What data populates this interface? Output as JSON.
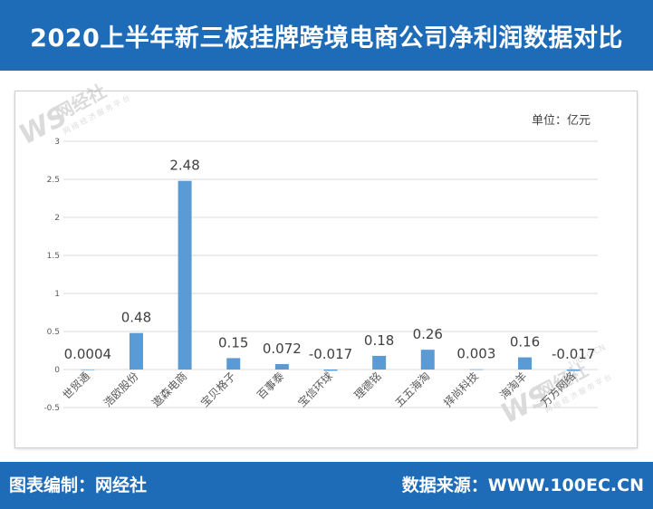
{
  "header": {
    "title": "2020上半年新三板挂牌跨境电商公司净利润数据对比"
  },
  "footer": {
    "left_text": "图表编制：网经社",
    "right_text": "数据来源：WWW.100EC.CN"
  },
  "watermark": {
    "logo": "WS",
    "name": "网经社",
    "tagline": "网 络 经 济 服 务 平 台",
    "site": "100EC.CN"
  },
  "colors": {
    "brand_blue": "#1e6bb8",
    "bar": "#5b9bd5",
    "grid": "#d9d9d9",
    "axis_text": "#595959"
  },
  "chart_data": {
    "type": "bar",
    "unit_label": "单位：亿元",
    "categories": [
      "世贸通",
      "浩欧股份",
      "遨森电商",
      "宝贝格子",
      "百事泰",
      "宝信环球",
      "理德铭",
      "五五海淘",
      "择尚科技",
      "海淘羊",
      "万方网络"
    ],
    "values": [
      0.0004,
      0.48,
      2.48,
      0.15,
      0.072,
      -0.017,
      0.18,
      0.26,
      0.003,
      0.16,
      -0.017
    ],
    "data_labels": [
      "0.0004",
      "0.48",
      "2.48",
      "0.15",
      "0.072",
      "-0.017",
      "0.18",
      "0.26",
      "0.003",
      "0.16",
      "-0.017"
    ],
    "ylim": [
      -0.5,
      3
    ],
    "yticks": [
      "-0.5",
      "0",
      "0.5",
      "1",
      "1.5",
      "2",
      "2.5",
      "3"
    ],
    "grid": true,
    "legend": "none"
  }
}
